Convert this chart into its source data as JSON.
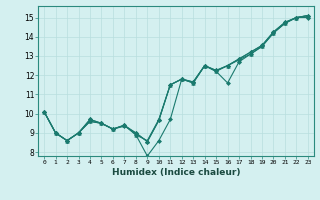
{
  "title": "",
  "xlabel": "Humidex (Indice chaleur)",
  "ylabel": "",
  "bg_color": "#d4f0f0",
  "grid_color": "#b8dede",
  "line_color": "#1a7a6e",
  "spine_color": "#2a8a7e",
  "xlim": [
    -0.5,
    23.5
  ],
  "ylim": [
    7.8,
    15.6
  ],
  "yticks": [
    8,
    9,
    10,
    11,
    12,
    13,
    14,
    15
  ],
  "xticks": [
    0,
    1,
    2,
    3,
    4,
    5,
    6,
    7,
    8,
    9,
    10,
    11,
    12,
    13,
    14,
    15,
    16,
    17,
    18,
    19,
    20,
    21,
    22,
    23
  ],
  "series": [
    {
      "x": [
        0,
        1,
        2,
        3,
        4,
        5,
        6,
        7,
        8,
        9,
        10,
        11,
        12,
        13,
        14,
        15,
        16,
        17,
        18,
        19,
        20,
        21,
        22,
        23
      ],
      "y": [
        10.1,
        9.0,
        8.6,
        9.0,
        9.7,
        9.5,
        9.2,
        9.4,
        8.9,
        7.8,
        8.6,
        9.7,
        11.8,
        11.6,
        12.5,
        12.2,
        11.6,
        12.7,
        13.1,
        13.5,
        14.2,
        14.7,
        15.0,
        15.0
      ],
      "marker": "D",
      "markersize": 2.0,
      "linewidth": 0.8
    },
    {
      "x": [
        0,
        1,
        2,
        3,
        4,
        5,
        6,
        7,
        8,
        9,
        10,
        11,
        12,
        13,
        14,
        15,
        16,
        17,
        18,
        19,
        20,
        21,
        22,
        23
      ],
      "y": [
        10.1,
        9.0,
        8.6,
        9.0,
        9.6,
        9.5,
        9.2,
        9.4,
        8.9,
        8.6,
        9.7,
        11.5,
        11.8,
        11.6,
        12.5,
        12.2,
        12.5,
        12.8,
        13.1,
        13.5,
        14.2,
        14.7,
        15.0,
        15.1
      ],
      "marker": "^",
      "markersize": 2.5,
      "linewidth": 0.8
    },
    {
      "x": [
        0,
        1,
        2,
        3,
        4,
        5,
        6,
        7,
        8,
        9,
        10,
        11,
        12,
        13,
        14,
        15,
        16,
        17,
        18,
        19,
        20,
        21,
        22,
        23
      ],
      "y": [
        10.1,
        9.0,
        8.6,
        9.0,
        9.6,
        9.5,
        9.2,
        9.4,
        9.0,
        8.55,
        9.65,
        11.5,
        11.8,
        11.65,
        12.5,
        12.25,
        12.5,
        12.85,
        13.2,
        13.55,
        14.25,
        14.75,
        15.0,
        15.1
      ],
      "marker": "D",
      "markersize": 2.0,
      "linewidth": 0.8
    },
    {
      "x": [
        0,
        1,
        2,
        3,
        4,
        5,
        6,
        7,
        8,
        9,
        10,
        11,
        12,
        13,
        14,
        15,
        16,
        17,
        18,
        19,
        20,
        21,
        22,
        23
      ],
      "y": [
        10.1,
        9.0,
        8.6,
        9.0,
        9.7,
        9.5,
        9.2,
        9.35,
        9.0,
        8.55,
        9.65,
        11.5,
        11.8,
        11.65,
        12.5,
        12.25,
        12.5,
        12.85,
        13.2,
        13.55,
        14.25,
        14.75,
        15.0,
        15.1
      ],
      "marker": "D",
      "markersize": 2.0,
      "linewidth": 0.8
    }
  ]
}
